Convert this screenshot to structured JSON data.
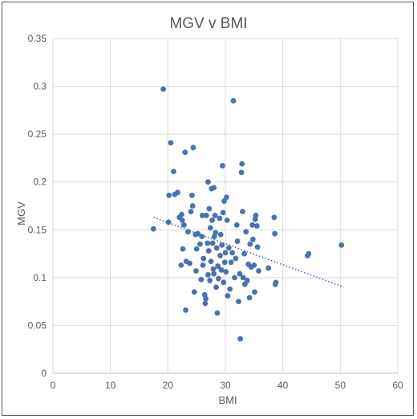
{
  "chart_data": {
    "type": "scatter",
    "title": "MGV v BMI",
    "xlabel": "BMI",
    "ylabel": "MGV",
    "xlim": [
      0,
      60
    ],
    "ylim": [
      0,
      0.35
    ],
    "xticks": [
      "0",
      "10",
      "20",
      "30",
      "40",
      "50",
      "60"
    ],
    "yticks": [
      "0",
      "0.05",
      "0.1",
      "0.15",
      "0.2",
      "0.25",
      "0.3",
      "0.35"
    ],
    "grid": true,
    "legend": "none",
    "colors": {
      "marker": "#4a72b0",
      "trendline": "#4a72b0",
      "grid": "#d9d9d9",
      "text": "#595959"
    },
    "trendline": {
      "style": "dotted",
      "type": "linear",
      "x": [
        17.5,
        50.2
      ],
      "y": [
        0.163,
        0.091
      ]
    },
    "series": [
      {
        "points": [
          [
            17.5,
            0.151
          ],
          [
            19.2,
            0.297
          ],
          [
            20.1,
            0.158
          ],
          [
            20.2,
            0.186
          ],
          [
            20.5,
            0.241
          ],
          [
            21.0,
            0.211
          ],
          [
            21.2,
            0.187
          ],
          [
            21.7,
            0.189
          ],
          [
            22.0,
            0.163
          ],
          [
            22.4,
            0.166
          ],
          [
            22.5,
            0.16
          ],
          [
            22.6,
            0.13
          ],
          [
            22.3,
            0.113
          ],
          [
            22.8,
            0.155
          ],
          [
            23.0,
            0.231
          ],
          [
            23.1,
            0.066
          ],
          [
            23.2,
            0.117
          ],
          [
            23.5,
            0.148
          ],
          [
            23.8,
            0.115
          ],
          [
            24.0,
            0.169
          ],
          [
            24.2,
            0.186
          ],
          [
            24.3,
            0.175
          ],
          [
            24.4,
            0.236
          ],
          [
            24.6,
            0.085
          ],
          [
            24.8,
            0.145
          ],
          [
            24.9,
            0.107
          ],
          [
            25.0,
            0.13
          ],
          [
            25.2,
            0.146
          ],
          [
            25.6,
            0.135
          ],
          [
            25.8,
            0.098
          ],
          [
            25.9,
            0.143
          ],
          [
            26.0,
            0.165
          ],
          [
            26.1,
            0.113
          ],
          [
            26.2,
            0.12
          ],
          [
            26.4,
            0.082
          ],
          [
            26.5,
            0.073
          ],
          [
            26.6,
            0.078
          ],
          [
            26.7,
            0.165
          ],
          [
            26.9,
            0.136
          ],
          [
            27.0,
            0.103
          ],
          [
            27.0,
            0.2
          ],
          [
            27.1,
            0.128
          ],
          [
            27.2,
            0.172
          ],
          [
            27.3,
            0.097
          ],
          [
            27.4,
            0.152
          ],
          [
            27.5,
            0.117
          ],
          [
            27.6,
            0.193
          ],
          [
            27.7,
            0.16
          ],
          [
            27.8,
            0.136
          ],
          [
            27.9,
            0.109
          ],
          [
            28.0,
            0.194
          ],
          [
            28.0,
            0.104
          ],
          [
            28.1,
            0.143
          ],
          [
            28.2,
            0.165
          ],
          [
            28.3,
            0.147
          ],
          [
            28.4,
            0.09
          ],
          [
            28.5,
            0.131
          ],
          [
            28.6,
            0.063
          ],
          [
            28.7,
            0.112
          ],
          [
            28.8,
            0.099
          ],
          [
            29.0,
            0.162
          ],
          [
            29.1,
            0.123
          ],
          [
            29.2,
            0.145
          ],
          [
            29.3,
            0.108
          ],
          [
            29.4,
            0.134
          ],
          [
            29.5,
            0.217
          ],
          [
            29.6,
            0.168
          ],
          [
            29.7,
            0.095
          ],
          [
            29.8,
            0.18
          ],
          [
            29.9,
            0.116
          ],
          [
            30.0,
            0.126
          ],
          [
            30.1,
            0.106
          ],
          [
            30.2,
            0.184
          ],
          [
            30.3,
            0.16
          ],
          [
            30.4,
            0.081
          ],
          [
            30.6,
            0.131
          ],
          [
            30.8,
            0.088
          ],
          [
            31.0,
            0.116
          ],
          [
            31.2,
            0.126
          ],
          [
            31.4,
            0.285
          ],
          [
            31.6,
            0.1
          ],
          [
            31.8,
            0.12
          ],
          [
            32.0,
            0.155
          ],
          [
            32.1,
            0.138
          ],
          [
            32.3,
            0.075
          ],
          [
            32.5,
            0.104
          ],
          [
            32.6,
            0.036
          ],
          [
            32.8,
            0.21
          ],
          [
            32.9,
            0.219
          ],
          [
            33.0,
            0.169
          ],
          [
            33.1,
            0.1
          ],
          [
            33.3,
            0.125
          ],
          [
            33.4,
            0.093
          ],
          [
            33.6,
            0.148
          ],
          [
            33.8,
            0.097
          ],
          [
            34.0,
            0.114
          ],
          [
            34.2,
            0.079
          ],
          [
            34.3,
            0.135
          ],
          [
            34.5,
            0.111
          ],
          [
            34.7,
            0.155
          ],
          [
            34.8,
            0.14
          ],
          [
            35.0,
            0.113
          ],
          [
            35.1,
            0.085
          ],
          [
            35.2,
            0.161
          ],
          [
            35.3,
            0.165
          ],
          [
            35.5,
            0.154
          ],
          [
            35.6,
            0.132
          ],
          [
            35.8,
            0.107
          ],
          [
            37.5,
            0.11
          ],
          [
            38.5,
            0.163
          ],
          [
            38.6,
            0.146
          ],
          [
            38.7,
            0.093
          ],
          [
            38.8,
            0.095
          ],
          [
            44.3,
            0.123
          ],
          [
            44.5,
            0.125
          ],
          [
            50.2,
            0.134
          ]
        ]
      }
    ]
  }
}
